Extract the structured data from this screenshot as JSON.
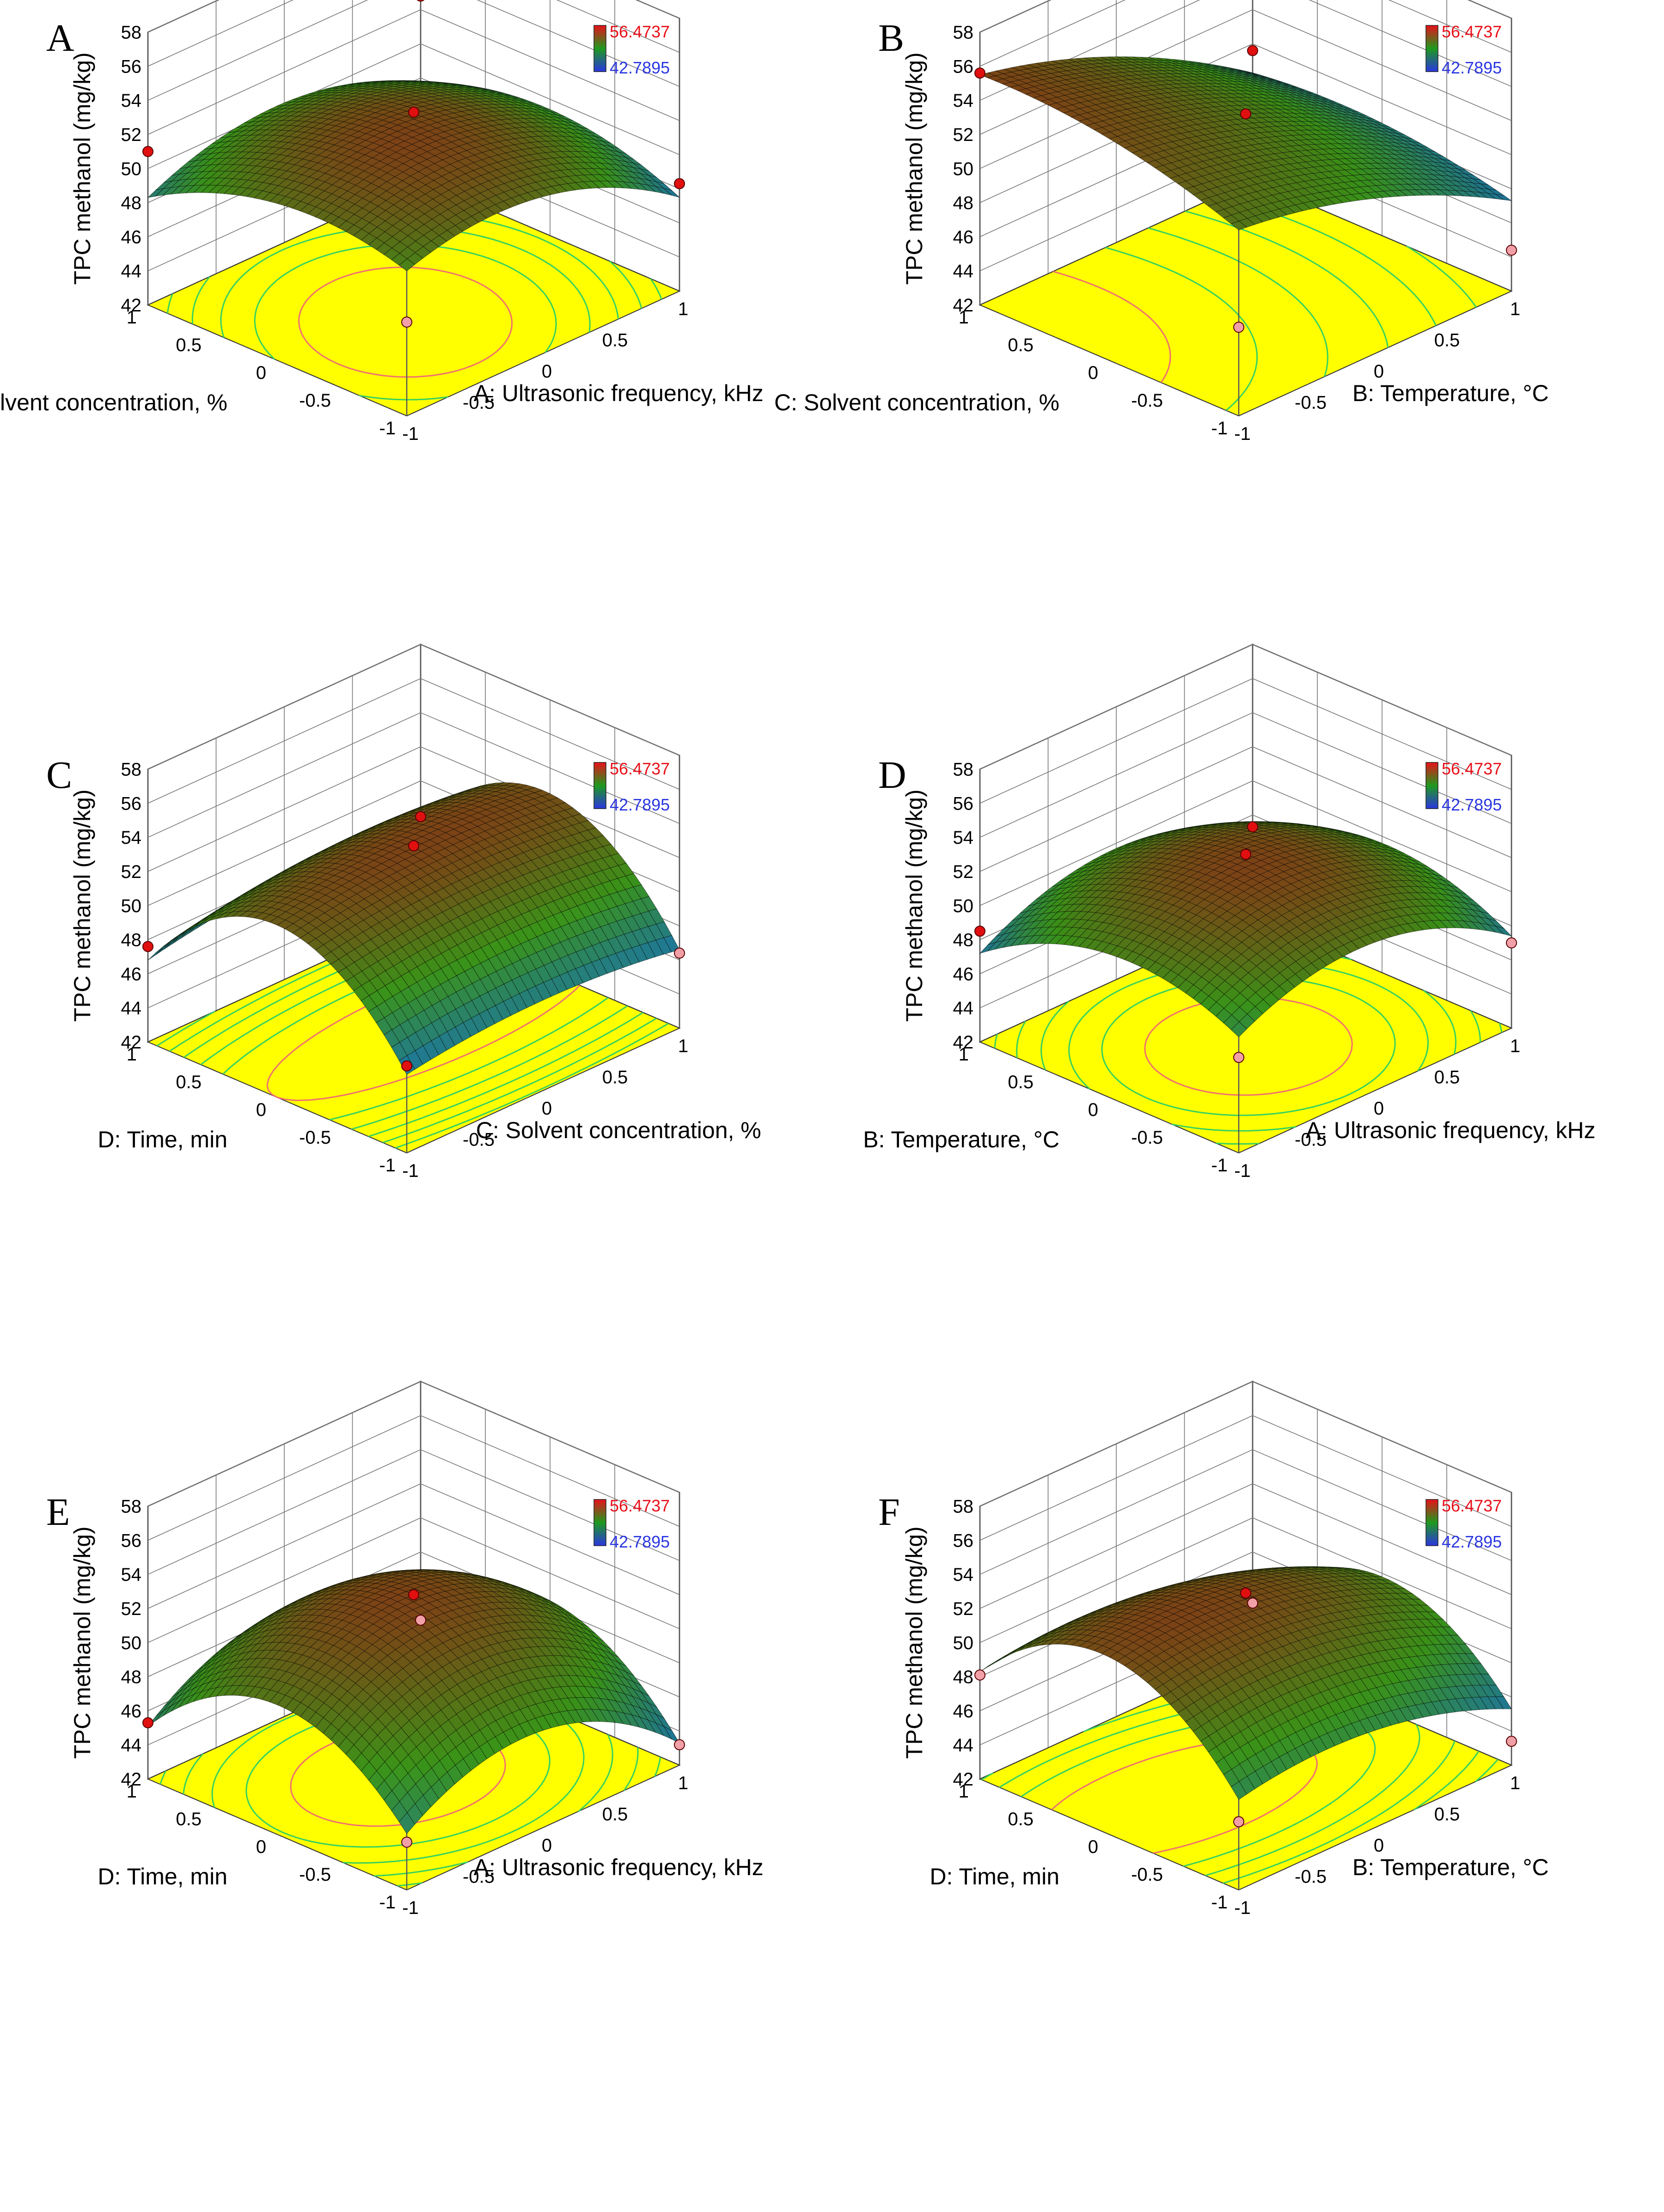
{
  "figure": {
    "z_title": "TPC methanol (mg/kg)",
    "z_ticks": [
      "42",
      "44",
      "46",
      "48",
      "50",
      "52",
      "54",
      "56",
      "58"
    ],
    "xy_ticks": [
      "-1",
      "-0.5",
      "0",
      "0.5",
      "1"
    ],
    "legend": {
      "high_label": "56.4737",
      "low_label": "42.7895",
      "high_color": "#e8111a",
      "low_color": "#2a36e0"
    },
    "colors": {
      "floor": "#ffff00",
      "contour": "#35d160",
      "surface_low": "#1f7fb0",
      "surface_mid": "#3fa01a",
      "surface_high": "#8a4a18",
      "design_point": "#e01010"
    }
  },
  "chart_data": [
    {
      "type": "surface3d",
      "panel": "A",
      "x_label": "A: Ultrasonic frequency, kHz",
      "y_label": "C: Solvent concentration, %",
      "z_label": "TPC methanol (mg/kg)",
      "x_range": [
        -1,
        1
      ],
      "y_range": [
        -1,
        1
      ],
      "z_range": [
        42,
        58
      ],
      "surface": {
        "b0": 52.5,
        "bx": -0.9,
        "by": -0.5,
        "bxx": -2.2,
        "byy": -1.8,
        "bxy": 0.6
      },
      "design_points": [
        [
          -1,
          -1,
          47.5
        ],
        [
          1,
          1,
          52.8
        ],
        [
          -1,
          1,
          51.0
        ],
        [
          1,
          -1,
          48.3
        ],
        [
          0,
          0,
          52.9
        ]
      ]
    },
    {
      "type": "surface3d",
      "panel": "B",
      "x_label": "B: Temperature, °C",
      "y_label": "C: Solvent concentration, %",
      "z_label": "TPC methanol (mg/kg)",
      "x_range": [
        -1,
        1
      ],
      "y_range": [
        -1,
        1
      ],
      "z_range": [
        42,
        58
      ],
      "surface": {
        "b0": 52.8,
        "bx": -3.2,
        "by": 0.9,
        "bxx": -1.0,
        "byy": -0.8,
        "bxy": -0.4
      },
      "design_points": [
        [
          -1,
          -1,
          47.2
        ],
        [
          1,
          1,
          49.6
        ],
        [
          -1,
          1,
          55.6
        ],
        [
          1,
          -1,
          44.4
        ],
        [
          0,
          0,
          52.8
        ]
      ]
    },
    {
      "type": "surface3d",
      "panel": "C",
      "x_label": "C: Solvent concentration, %",
      "y_label": "D: Time, min",
      "z_label": "TPC methanol (mg/kg)",
      "x_range": [
        -1,
        1
      ],
      "y_range": [
        -1,
        1
      ],
      "z_range": [
        42,
        58
      ],
      "surface": {
        "b0": 53.0,
        "bx": 0.2,
        "by": 0.3,
        "bxx": -0.7,
        "byy": -5.4,
        "bxy": 0.2
      },
      "design_points": [
        [
          -1,
          -1,
          47.1
        ],
        [
          1,
          1,
          47.9
        ],
        [
          -1,
          1,
          47.6
        ],
        [
          1,
          -1,
          46.4
        ],
        [
          0,
          0,
          53.1
        ]
      ]
    },
    {
      "type": "surface3d",
      "panel": "D",
      "x_label": "A: Ultrasonic frequency, kHz",
      "y_label": "B: Temperature, °C",
      "z_label": "TPC methanol (mg/kg)",
      "x_range": [
        -1,
        1
      ],
      "y_range": [
        -1,
        1
      ],
      "z_range": [
        42,
        58
      ],
      "surface": {
        "b0": 52.6,
        "bx": -0.4,
        "by": -0.5,
        "bxx": -2.6,
        "byy": -2.4,
        "bxy": 0.3
      },
      "design_points": [
        [
          -1,
          -1,
          47.6
        ],
        [
          1,
          1,
          47.3
        ],
        [
          -1,
          1,
          48.5
        ],
        [
          1,
          -1,
          47.0
        ],
        [
          0,
          0,
          52.6
        ]
      ]
    },
    {
      "type": "surface3d",
      "panel": "E",
      "x_label": "A: Ultrasonic frequency, kHz",
      "y_label": "D: Time, min",
      "z_label": "TPC methanol (mg/kg)",
      "x_range": [
        -1,
        1
      ],
      "y_range": [
        -1,
        1
      ],
      "z_range": [
        42,
        58
      ],
      "surface": {
        "b0": 52.4,
        "bx": -0.6,
        "by": 0.3,
        "bxx": -3.4,
        "byy": -4.4,
        "bxy": 0.4
      },
      "design_points": [
        [
          -1,
          -1,
          44.8
        ],
        [
          1,
          1,
          44.0
        ],
        [
          -1,
          1,
          45.3
        ],
        [
          1,
          -1,
          43.2
        ],
        [
          0,
          0,
          52.4
        ]
      ]
    },
    {
      "type": "surface3d",
      "panel": "F",
      "x_label": "B: Temperature, °C",
      "y_label": "D: Time, min",
      "z_label": "TPC methanol (mg/kg)",
      "x_range": [
        -1,
        1
      ],
      "y_range": [
        -1,
        1
      ],
      "z_range": [
        42,
        58
      ],
      "surface": {
        "b0": 52.5,
        "bx": -1.3,
        "by": 0.2,
        "bxx": -1.4,
        "byy": -4.6,
        "bxy": -0.3
      },
      "design_points": [
        [
          -1,
          -1,
          46.0
        ],
        [
          1,
          1,
          45.0
        ],
        [
          -1,
          1,
          48.1
        ],
        [
          1,
          -1,
          43.4
        ],
        [
          0,
          0,
          52.5
        ]
      ]
    }
  ]
}
